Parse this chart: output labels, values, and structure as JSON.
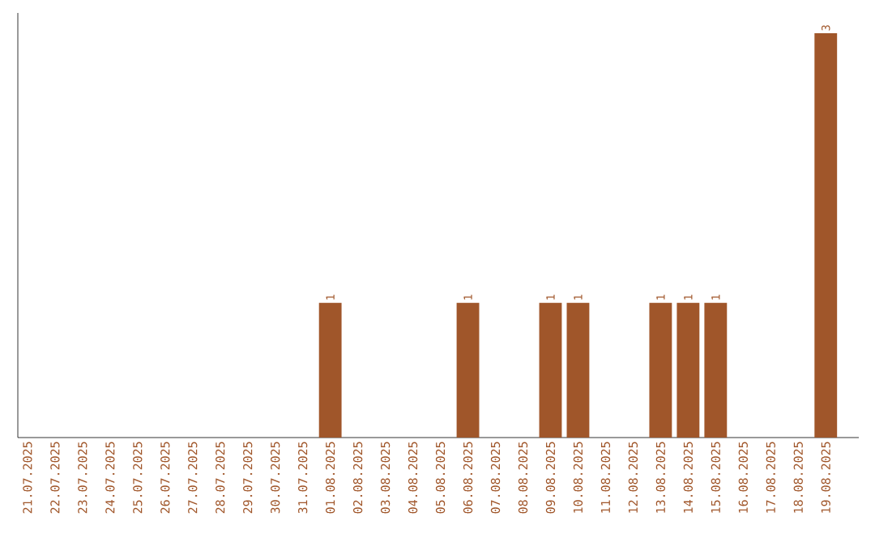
{
  "chart_data": {
    "type": "bar",
    "categories": [
      "21.07.2025",
      "22.07.2025",
      "23.07.2025",
      "24.07.2025",
      "25.07.2025",
      "26.07.2025",
      "27.07.2025",
      "28.07.2025",
      "29.07.2025",
      "30.07.2025",
      "31.07.2025",
      "01.08.2025",
      "02.08.2025",
      "03.08.2025",
      "04.08.2025",
      "05.08.2025",
      "06.08.2025",
      "07.08.2025",
      "08.08.2025",
      "09.08.2025",
      "10.08.2025",
      "11.08.2025",
      "12.08.2025",
      "13.08.2025",
      "14.08.2025",
      "15.08.2025",
      "16.08.2025",
      "17.08.2025",
      "18.08.2025",
      "19.08.2025"
    ],
    "values": [
      0,
      0,
      0,
      0,
      0,
      0,
      0,
      0,
      0,
      0,
      0,
      1,
      0,
      0,
      0,
      0,
      1,
      0,
      0,
      1,
      1,
      0,
      0,
      1,
      1,
      1,
      0,
      0,
      0,
      3
    ],
    "value_labels": [
      null,
      null,
      null,
      null,
      null,
      null,
      null,
      null,
      null,
      null,
      null,
      "1",
      null,
      null,
      null,
      null,
      "1",
      null,
      null,
      "1",
      "1",
      null,
      null,
      "1",
      "1",
      "1",
      null,
      null,
      null,
      "3"
    ],
    "color": "#a0562a"
  }
}
